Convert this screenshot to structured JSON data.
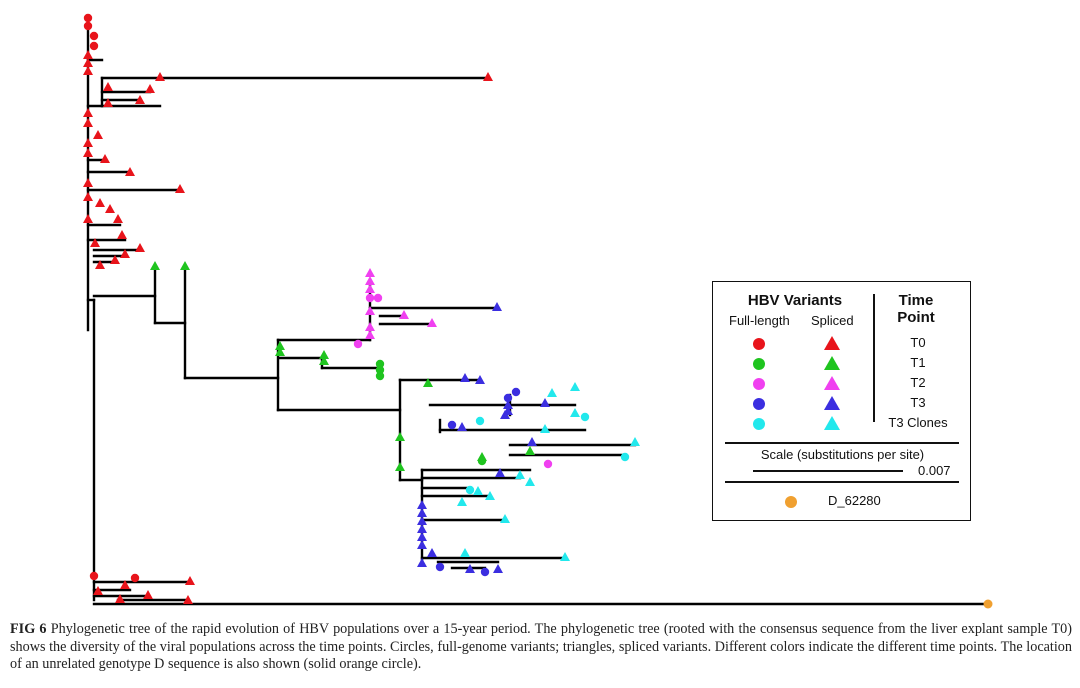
{
  "figure": {
    "label": "FIG 6",
    "caption": "Phylogenetic tree of the rapid evolution of HBV populations over a 15-year period. The phylogenetic tree (rooted with the consensus sequence from the liver explant sample T0) shows the diversity of the viral populations across the time points. Circles, full-genome variants; triangles, spliced variants. Different colors indicate the different time points. The location of an unrelated genotype D sequence is also shown (solid orange circle)."
  },
  "legend": {
    "title_variants": "HBV Variants",
    "sub_full": "Full-length",
    "sub_spliced": "Spliced",
    "title_time_1": "Time",
    "title_time_2": "Point",
    "rows": [
      {
        "label": "T0",
        "color": "#e8141b"
      },
      {
        "label": "T1",
        "color": "#1fc41f"
      },
      {
        "label": "T2",
        "color": "#f040f0"
      },
      {
        "label": "T3",
        "color": "#3b2ee0"
      },
      {
        "label": "T3 Clones",
        "color": "#22e8ec"
      }
    ],
    "scale_title": "Scale (substitutions per site)",
    "scale_value": "0.007",
    "outgroup_label": "D_62280",
    "outgroup_color": "#f0a030"
  }
}
